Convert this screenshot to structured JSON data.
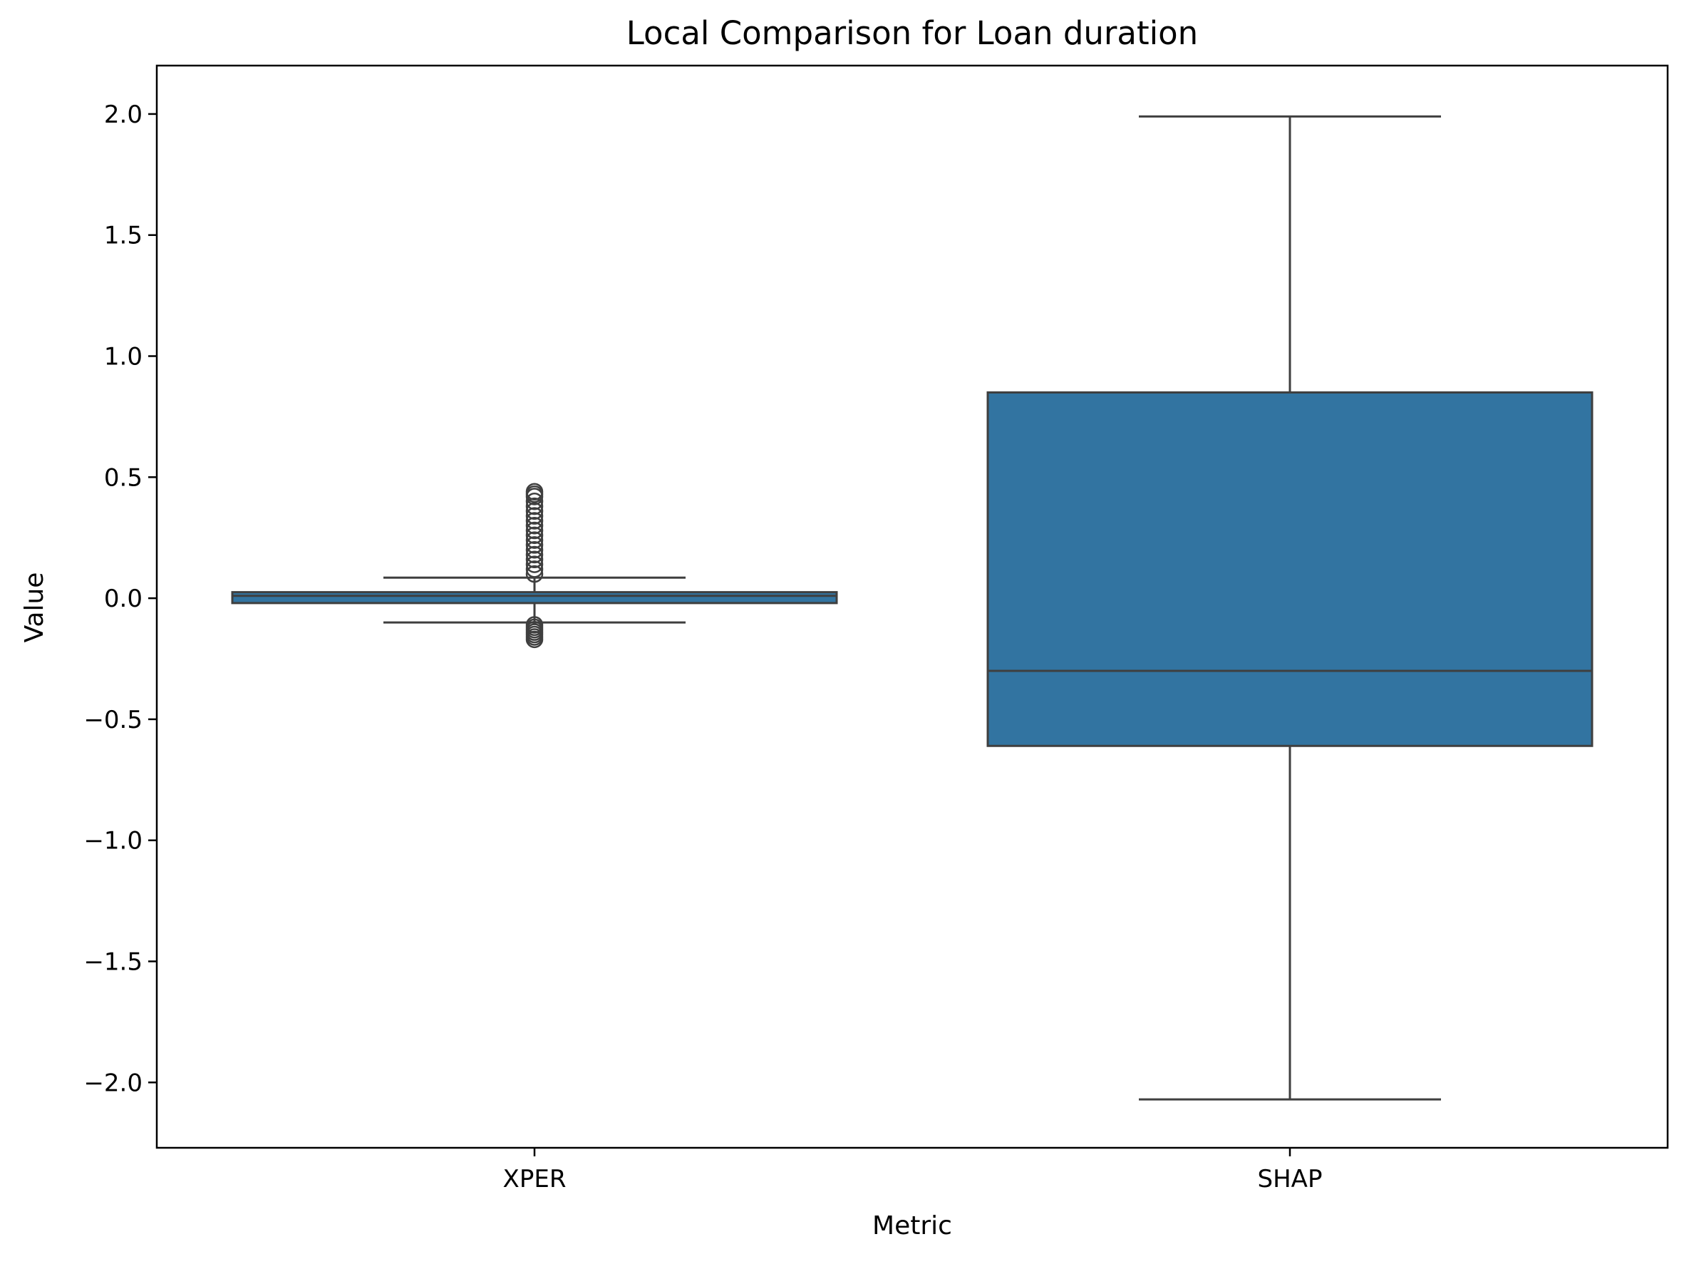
{
  "chart_data": {
    "type": "box",
    "title": "Local Comparison for Loan duration",
    "xlabel": "Metric",
    "ylabel": "Value",
    "ylim": [
      -2.27,
      2.2
    ],
    "yticks": [
      2.0,
      1.5,
      1.0,
      0.5,
      0.0,
      -0.5,
      -1.0,
      -1.5,
      -2.0
    ],
    "ytick_labels": [
      "2.0",
      "1.5",
      "1.0",
      "0.5",
      "0.0",
      "−0.5",
      "−1.0",
      "−1.5",
      "−2.0"
    ],
    "categories": [
      "XPER",
      "SHAP"
    ],
    "box_color": "#3274a1",
    "line_color": "#3f3f3f",
    "grid": false,
    "boxes": [
      {
        "category": "XPER",
        "whisker_low": -0.1,
        "q1": -0.02,
        "median": 0.01,
        "q3": 0.025,
        "whisker_high": 0.085,
        "outliers": [
          0.44,
          0.43,
          0.42,
          0.4,
          0.38,
          0.36,
          0.34,
          0.32,
          0.3,
          0.28,
          0.26,
          0.24,
          0.22,
          0.2,
          0.18,
          0.16,
          0.14,
          0.12,
          0.1,
          -0.11,
          -0.12,
          -0.13,
          -0.14,
          -0.15,
          -0.16,
          -0.17
        ]
      },
      {
        "category": "SHAP",
        "whisker_low": -2.07,
        "q1": -0.61,
        "median": -0.3,
        "q3": 0.85,
        "whisker_high": 1.99,
        "outliers": []
      }
    ]
  }
}
